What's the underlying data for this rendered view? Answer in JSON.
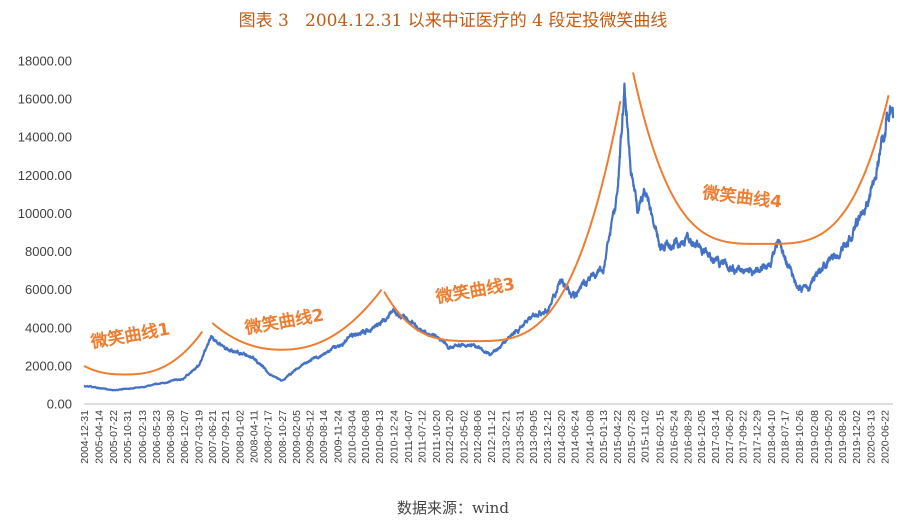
{
  "title": "图表 3   2004.12.31 以来中证医疗的 4 段定投微笑曲线",
  "source": "数据来源：wind",
  "chart_data": {
    "type": "line",
    "title": "图表 3   2004.12.31 以来中证医疗的 4 段定投微笑曲线",
    "xlabel": "",
    "ylabel": "",
    "ylim": [
      0,
      18000
    ],
    "yticks": [
      "0.00",
      "2000.00",
      "4000.00",
      "6000.00",
      "8000.00",
      "10000.00",
      "12000.00",
      "14000.00",
      "16000.00",
      "18000.00"
    ],
    "grid": false,
    "legend": "none",
    "xticks": [
      "2004-12-31",
      "2005-04-14",
      "2005-07-22",
      "2005-10-31",
      "2006-02-13",
      "2006-05-23",
      "2006-08-30",
      "2006-12-07",
      "2007-03-19",
      "2007-06-21",
      "2007-09-21",
      "2008-01-02",
      "2008-04-11",
      "2008-07-17",
      "2008-10-27",
      "2009-02-05",
      "2009-05-12",
      "2009-08-14",
      "2009-11-24",
      "2010-03-04",
      "2010-06-08",
      "2010-09-13",
      "2010-12-24",
      "2011-04-07",
      "2011-07-12",
      "2011-10-20",
      "2012-01-20",
      "2012-05-02",
      "2012-08-06",
      "2012-11-12",
      "2013-02-21",
      "2013-05-31",
      "2013-09-05",
      "2013-12-12",
      "2014-03-20",
      "2014-06-24",
      "2014-10-08",
      "2015-01-13",
      "2015-04-22",
      "2015-07-28",
      "2015-11-02",
      "2016-02-15",
      "2016-05-24",
      "2016-08-29",
      "2016-12-05",
      "2017-03-14",
      "2017-06-20",
      "2017-09-22",
      "2017-12-29",
      "2018-04-10",
      "2018-07-17",
      "2018-10-26",
      "2019-02-08",
      "2019-05-20",
      "2019-08-26",
      "2019-12-02",
      "2020-03-13",
      "2020-06-22"
    ],
    "colors": {
      "index_line": "#4472c4",
      "smile_curve": "#ed7d31",
      "title": "#c55a11"
    },
    "series": [
      {
        "values": [
          {
            "x": "2004-12-31",
            "y": 950
          },
          {
            "x": "2005-04-14",
            "y": 860
          },
          {
            "x": "2005-07-22",
            "y": 720
          },
          {
            "x": "2005-10-31",
            "y": 800
          },
          {
            "x": "2006-02-13",
            "y": 870
          },
          {
            "x": "2006-05-23",
            "y": 1050
          },
          {
            "x": "2006-08-30",
            "y": 1200
          },
          {
            "x": "2006-12-07",
            "y": 1350
          },
          {
            "x": "2007-03-19",
            "y": 2000
          },
          {
            "x": "2007-06-21",
            "y": 3500
          },
          {
            "x": "2007-09-21",
            "y": 2900
          },
          {
            "x": "2008-01-02",
            "y": 2700
          },
          {
            "x": "2008-04-11",
            "y": 2400
          },
          {
            "x": "2008-07-17",
            "y": 1700
          },
          {
            "x": "2008-10-27",
            "y": 1200
          },
          {
            "x": "2009-02-05",
            "y": 1800
          },
          {
            "x": "2009-05-12",
            "y": 2300
          },
          {
            "x": "2009-08-14",
            "y": 2600
          },
          {
            "x": "2009-11-24",
            "y": 3000
          },
          {
            "x": "2010-03-04",
            "y": 3600
          },
          {
            "x": "2010-06-08",
            "y": 3800
          },
          {
            "x": "2010-09-13",
            "y": 4200
          },
          {
            "x": "2010-12-24",
            "y": 4900
          },
          {
            "x": "2011-04-07",
            "y": 4300
          },
          {
            "x": "2011-07-12",
            "y": 3900
          },
          {
            "x": "2011-10-20",
            "y": 3500
          },
          {
            "x": "2012-01-20",
            "y": 3000
          },
          {
            "x": "2012-05-02",
            "y": 3100
          },
          {
            "x": "2012-08-06",
            "y": 3000
          },
          {
            "x": "2012-11-12",
            "y": 2600
          },
          {
            "x": "2013-02-21",
            "y": 3300
          },
          {
            "x": "2013-05-31",
            "y": 4000
          },
          {
            "x": "2013-09-05",
            "y": 4600
          },
          {
            "x": "2013-12-12",
            "y": 4900
          },
          {
            "x": "2014-03-20",
            "y": 6400
          },
          {
            "x": "2014-06-24",
            "y": 5700
          },
          {
            "x": "2014-10-08",
            "y": 6700
          },
          {
            "x": "2015-01-13",
            "y": 7100
          },
          {
            "x": "2015-04-22",
            "y": 11000
          },
          {
            "x": "2015-06-12",
            "y": 16800
          },
          {
            "x": "2015-07-28",
            "y": 12500
          },
          {
            "x": "2015-09-15",
            "y": 10000
          },
          {
            "x": "2015-11-02",
            "y": 11200
          },
          {
            "x": "2016-02-15",
            "y": 8200
          },
          {
            "x": "2016-05-24",
            "y": 8400
          },
          {
            "x": "2016-08-29",
            "y": 8700
          },
          {
            "x": "2016-12-05",
            "y": 8100
          },
          {
            "x": "2017-03-14",
            "y": 7600
          },
          {
            "x": "2017-06-20",
            "y": 7100
          },
          {
            "x": "2017-09-22",
            "y": 6900
          },
          {
            "x": "2017-12-29",
            "y": 7000
          },
          {
            "x": "2018-04-10",
            "y": 7500
          },
          {
            "x": "2018-05-25",
            "y": 8500
          },
          {
            "x": "2018-07-17",
            "y": 7700
          },
          {
            "x": "2018-10-26",
            "y": 6200
          },
          {
            "x": "2019-01-04",
            "y": 6000
          },
          {
            "x": "2019-02-08",
            "y": 6600
          },
          {
            "x": "2019-05-20",
            "y": 7400
          },
          {
            "x": "2019-08-26",
            "y": 8000
          },
          {
            "x": "2019-12-02",
            "y": 9300
          },
          {
            "x": "2020-03-13",
            "y": 11000
          },
          {
            "x": "2020-06-22",
            "y": 14000
          },
          {
            "x": "2020-07-20",
            "y": 15800
          },
          {
            "x": "2020-08-20",
            "y": 15000
          }
        ]
      }
    ],
    "smile_curves": [
      {
        "label": "微笑曲线1",
        "start": "2004-12-31",
        "end": "2007-04-15",
        "start_y": 2000,
        "min_y": 1550,
        "end_y": 3800,
        "power": 2.5
      },
      {
        "label": "微笑曲线2",
        "start": "2007-06-25",
        "end": "2010-10-01",
        "start_y": 4250,
        "min_y": 2850,
        "end_y": 6000,
        "power": 2.2
      },
      {
        "label": "微笑曲线3",
        "start": "2010-10-20",
        "end": "2015-05-15",
        "start_y": 5900,
        "min_y": 3300,
        "end_y": 15900,
        "power": 3.2
      },
      {
        "label": "微笑曲线4",
        "start": "2015-08-12",
        "end": "2020-07-20",
        "start_y": 17400,
        "min_y": 8400,
        "end_y": 16200,
        "power": 3.5
      }
    ]
  }
}
